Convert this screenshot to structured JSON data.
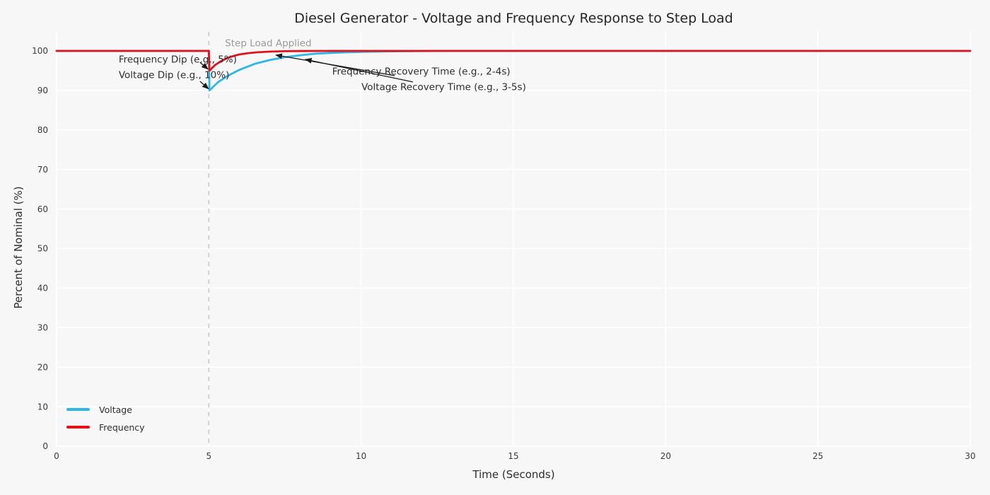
{
  "chart_data": {
    "type": "line",
    "title": "Diesel Generator - Voltage and Frequency Response to Step Load",
    "xlabel": "Time (Seconds)",
    "ylabel": "Percent of Nominal (%)",
    "xlim": [
      0,
      30
    ],
    "ylim": [
      0,
      100
    ],
    "xticks": [
      0,
      5,
      10,
      15,
      20,
      25,
      30
    ],
    "yticks": [
      0,
      10,
      20,
      30,
      40,
      50,
      60,
      70,
      80,
      90,
      100
    ],
    "grid": true,
    "background_color": "#f7f7f7",
    "grid_color": "#ffffff",
    "legend_position": "lower-left",
    "series": [
      {
        "name": "Voltage",
        "color": "#2db6ea",
        "x": [
          0,
          5,
          5.02,
          5.3,
          5.6,
          6,
          6.5,
          7,
          7.5,
          8,
          8.5,
          9,
          9.5,
          10,
          10.5,
          11,
          12,
          13,
          15,
          20,
          25,
          30
        ],
        "y": [
          100,
          100,
          90,
          92.1,
          93.6,
          95.2,
          96.7,
          97.7,
          98.4,
          98.9,
          99.3,
          99.5,
          99.65,
          99.75,
          99.83,
          99.9,
          99.96,
          100,
          100,
          100,
          100,
          100
        ]
      },
      {
        "name": "Frequency",
        "color": "#e11119",
        "x": [
          0,
          5,
          5.02,
          5.2,
          5.4,
          5.6,
          5.8,
          6,
          6.3,
          6.6,
          7,
          7.5,
          8,
          9,
          10,
          15,
          20,
          25,
          30
        ],
        "y": [
          100,
          100,
          95,
          96.4,
          97.4,
          98.2,
          98.7,
          99.1,
          99.45,
          99.66,
          99.82,
          99.92,
          99.97,
          100,
          100,
          100,
          100,
          100,
          100
        ]
      }
    ],
    "event_line": {
      "x": 5,
      "label": "Step Load Applied",
      "label_x": 5.53,
      "label_y": 102,
      "color": "#cdcdcd",
      "style": "dashed"
    },
    "annotations": [
      {
        "text": "Frequency Dip (e.g., 5%)",
        "x": 2.04,
        "y": 97.86,
        "arrow": {
          "from": [
            4.71,
            97.1
          ],
          "to": [
            4.97,
            95.4
          ]
        }
      },
      {
        "text": "Voltage Dip (e.g., 10%)",
        "x": 2.04,
        "y": 93.9,
        "arrow": {
          "from": [
            4.71,
            92.3
          ],
          "to": [
            4.99,
            90.4
          ]
        }
      },
      {
        "text": "Frequency Recovery Time (e.g., 2-4s)",
        "x": 9.05,
        "y": 94.8,
        "arrow": {
          "from": [
            11.1,
            93.75
          ],
          "to": [
            7.2,
            98.95
          ]
        }
      },
      {
        "text": "Voltage Recovery Time (e.g., 3-5s)",
        "x": 10.01,
        "y": 90.9,
        "arrow": {
          "from": [
            11.7,
            92.15
          ],
          "to": [
            8.17,
            97.85
          ]
        }
      }
    ],
    "annotation_arrow_color": "#1a1a1a",
    "tick_label_color": "#3c3c3c",
    "annotation_text_color": "#2d2d2d",
    "event_label_color": "#9a9a9a"
  }
}
